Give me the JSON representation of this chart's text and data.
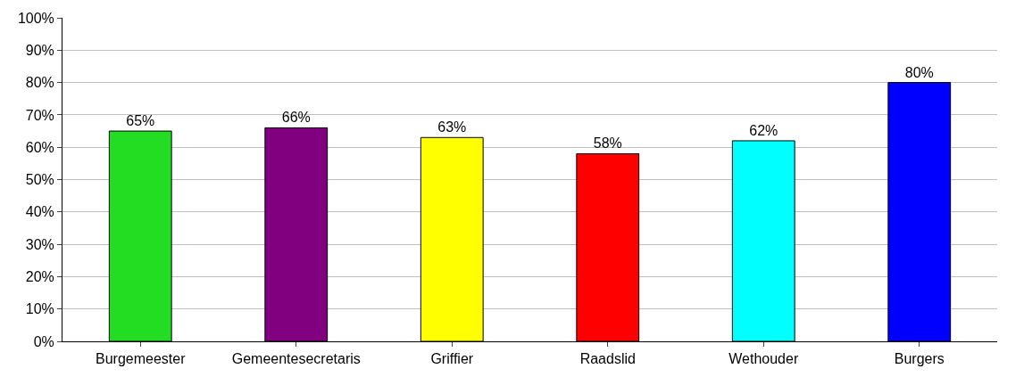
{
  "chart_data": {
    "type": "bar",
    "categories": [
      "Burgemeester",
      "Gemeentesecretaris",
      "Griffier",
      "Raadslid",
      "Wethouder",
      "Burgers"
    ],
    "values": [
      65,
      66,
      63,
      58,
      62,
      80
    ],
    "colors": [
      "#22dd22",
      "#800080",
      "#ffff00",
      "#ff0000",
      "#00ffff",
      "#0000ff"
    ],
    "value_labels": [
      "65%",
      "66%",
      "63%",
      "58%",
      "62%",
      "80%"
    ],
    "ylim": [
      0,
      100
    ],
    "yticks": [
      {
        "value": 0,
        "label": "0%"
      },
      {
        "value": 10,
        "label": "10%"
      },
      {
        "value": 20,
        "label": "20%"
      },
      {
        "value": 30,
        "label": "30%"
      },
      {
        "value": 40,
        "label": "40%"
      },
      {
        "value": 50,
        "label": "50%"
      },
      {
        "value": 60,
        "label": "60%"
      },
      {
        "value": 70,
        "label": "70%"
      },
      {
        "value": 80,
        "label": "80%"
      },
      {
        "value": 90,
        "label": "90%"
      },
      {
        "value": 100,
        "label": "100%"
      }
    ],
    "grid": "y"
  }
}
